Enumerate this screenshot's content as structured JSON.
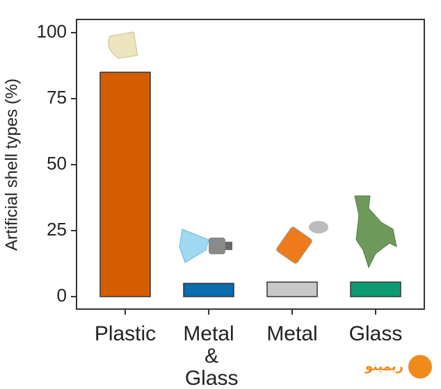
{
  "chart_data": {
    "type": "bar",
    "y_label": "Artificial shell types (%)",
    "categories": [
      "Plastic",
      "Metal & Glass",
      "Metal",
      "Glass"
    ],
    "values": [
      85,
      5,
      5.5,
      5.5
    ],
    "colors": [
      "#d45d00",
      "#0b6cae",
      "#c8c8c8",
      "#0d9c72"
    ],
    "ylim": [
      0,
      100
    ],
    "yticks": [
      0,
      25,
      50,
      75,
      100
    ],
    "grid": false
  },
  "watermark": "ریمینو"
}
